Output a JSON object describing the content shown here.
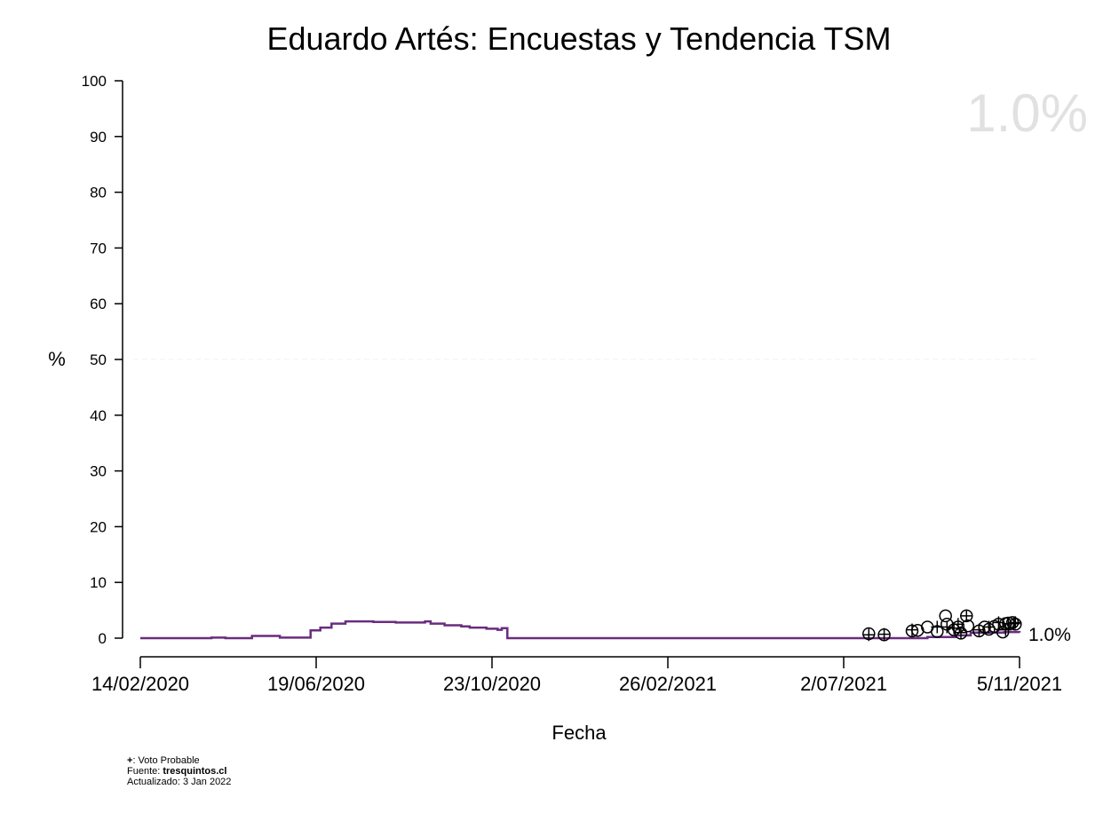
{
  "chart_data": {
    "type": "line",
    "title": "Eduardo Artés: Encuestas y Tendencia TSM",
    "xlabel": "Fecha",
    "ylabel": "%",
    "ylim": [
      0,
      100
    ],
    "y_ticks": [
      0,
      10,
      20,
      30,
      40,
      50,
      60,
      70,
      80,
      90,
      100
    ],
    "x_ticks": [
      {
        "date": "2020-02-14",
        "label": "14/02/2020"
      },
      {
        "date": "2020-06-19",
        "label": "19/06/2020"
      },
      {
        "date": "2020-10-23",
        "label": "23/10/2020"
      },
      {
        "date": "2021-02-26",
        "label": "26/02/2021"
      },
      {
        "date": "2021-07-02",
        "label": "2/07/2021"
      },
      {
        "date": "2021-11-05",
        "label": "5/11/2021"
      }
    ],
    "xlim": [
      "2020-02-14",
      "2021-11-05"
    ],
    "reference_line": {
      "y": 50,
      "style": "dashed",
      "color": "#f2f2f2"
    },
    "current_value_label": "1.0%",
    "end_label": "1.0%",
    "series": [
      {
        "kind": "trend",
        "color": "#6a2c7f",
        "step": true,
        "points": [
          {
            "x": "2020-02-14",
            "y": 0.0
          },
          {
            "x": "2020-04-05",
            "y": 0.1
          },
          {
            "x": "2020-04-15",
            "y": 0.0
          },
          {
            "x": "2020-05-04",
            "y": 0.4
          },
          {
            "x": "2020-05-24",
            "y": 0.1
          },
          {
            "x": "2020-06-15",
            "y": 1.4
          },
          {
            "x": "2020-06-22",
            "y": 1.9
          },
          {
            "x": "2020-06-30",
            "y": 2.6
          },
          {
            "x": "2020-07-10",
            "y": 3.0
          },
          {
            "x": "2020-07-30",
            "y": 2.9
          },
          {
            "x": "2020-08-15",
            "y": 2.8
          },
          {
            "x": "2020-09-05",
            "y": 3.0
          },
          {
            "x": "2020-09-09",
            "y": 2.6
          },
          {
            "x": "2020-09-19",
            "y": 2.3
          },
          {
            "x": "2020-10-01",
            "y": 2.1
          },
          {
            "x": "2020-10-07",
            "y": 1.9
          },
          {
            "x": "2020-10-19",
            "y": 1.7
          },
          {
            "x": "2020-10-27",
            "y": 1.5
          },
          {
            "x": "2020-10-30",
            "y": 1.8
          },
          {
            "x": "2020-11-03",
            "y": 0.0
          },
          {
            "x": "2021-08-31",
            "y": 0.2
          },
          {
            "x": "2021-09-20",
            "y": 0.5
          },
          {
            "x": "2021-10-01",
            "y": 1.0
          },
          {
            "x": "2021-10-25",
            "y": 1.1
          },
          {
            "x": "2021-11-05",
            "y": 1.0
          }
        ]
      },
      {
        "kind": "polls",
        "marker": "circle",
        "points": [
          {
            "x": "2021-07-20",
            "y": 0.8
          },
          {
            "x": "2021-07-31",
            "y": 0.6
          },
          {
            "x": "2021-08-20",
            "y": 1.3
          },
          {
            "x": "2021-08-24",
            "y": 1.4
          },
          {
            "x": "2021-08-31",
            "y": 2.0
          },
          {
            "x": "2021-09-07",
            "y": 1.2
          },
          {
            "x": "2021-09-13",
            "y": 4.0
          },
          {
            "x": "2021-09-14",
            "y": 2.5
          },
          {
            "x": "2021-09-19",
            "y": 1.5
          },
          {
            "x": "2021-09-22",
            "y": 2.0
          },
          {
            "x": "2021-09-24",
            "y": 0.9
          },
          {
            "x": "2021-09-28",
            "y": 4.0
          },
          {
            "x": "2021-09-29",
            "y": 2.2
          },
          {
            "x": "2021-10-07",
            "y": 1.3
          },
          {
            "x": "2021-10-11",
            "y": 2.0
          },
          {
            "x": "2021-10-14",
            "y": 1.6
          },
          {
            "x": "2021-10-18",
            "y": 2.1
          },
          {
            "x": "2021-10-21",
            "y": 2.5
          },
          {
            "x": "2021-10-24",
            "y": 1.1
          },
          {
            "x": "2021-10-26",
            "y": 2.6
          },
          {
            "x": "2021-10-28",
            "y": 2.7
          },
          {
            "x": "2021-10-31",
            "y": 2.8
          },
          {
            "x": "2021-11-02",
            "y": 2.5
          }
        ]
      },
      {
        "kind": "polls",
        "marker": "plus",
        "legend": "Voto Probable",
        "points": [
          {
            "x": "2021-07-20",
            "y": 0.6
          },
          {
            "x": "2021-07-31",
            "y": 0.7
          },
          {
            "x": "2021-08-20",
            "y": 1.5
          },
          {
            "x": "2021-09-07",
            "y": 2.0
          },
          {
            "x": "2021-09-14",
            "y": 2.0
          },
          {
            "x": "2021-09-19",
            "y": 1.8
          },
          {
            "x": "2021-09-22",
            "y": 2.5
          },
          {
            "x": "2021-09-24",
            "y": 1.0
          },
          {
            "x": "2021-09-28",
            "y": 4.0
          },
          {
            "x": "2021-10-07",
            "y": 1.5
          },
          {
            "x": "2021-10-14",
            "y": 2.0
          },
          {
            "x": "2021-10-21",
            "y": 2.8
          },
          {
            "x": "2021-10-26",
            "y": 1.5
          },
          {
            "x": "2021-10-28",
            "y": 2.6
          },
          {
            "x": "2021-11-01",
            "y": 2.6
          },
          {
            "x": "2021-11-02",
            "y": 2.8
          }
        ]
      }
    ]
  },
  "footer": {
    "legend_symbol": "+",
    "legend_text": ": Voto Probable",
    "source_label": "Fuente: ",
    "source_value": "tresquintos.cl",
    "updated": "Actualizado: 3 Jan 2022"
  }
}
